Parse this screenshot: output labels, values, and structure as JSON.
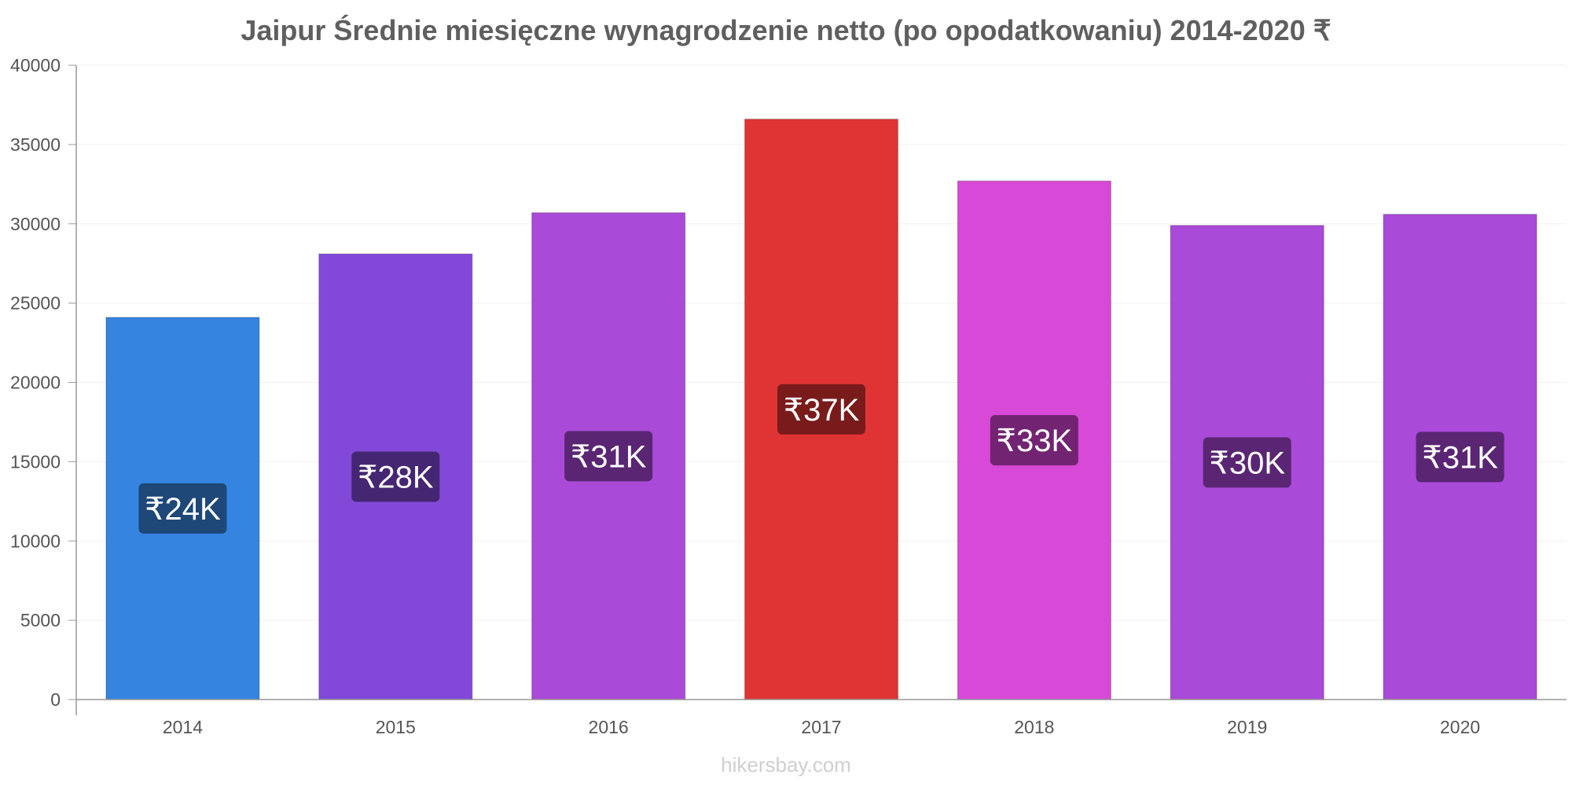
{
  "chart_data": {
    "type": "bar",
    "title": "Jaipur Średnie miesięczne wynagrodzenie netto (po opodatkowaniu) 2014-2020 ₹",
    "categories": [
      "2014",
      "2015",
      "2016",
      "2017",
      "2018",
      "2019",
      "2020"
    ],
    "values": [
      24100,
      28100,
      30700,
      36600,
      32700,
      29900,
      30600
    ],
    "data_labels": [
      "₹24K",
      "₹28K",
      "₹31K",
      "₹37K",
      "₹33K",
      "₹30K",
      "₹31K"
    ],
    "bar_colors": [
      "#3584e0",
      "#8249d8",
      "#a94ad9",
      "#e03434",
      "#d749d6",
      "#a94ad9",
      "#a94ad9"
    ],
    "label_bg_colors": [
      "#1e4878",
      "#452672",
      "#5a2673",
      "#7a1b1b",
      "#722472",
      "#5a2673",
      "#5a2673"
    ],
    "y_ticks": [
      "0",
      "5000",
      "10000",
      "15000",
      "20000",
      "25000",
      "30000",
      "35000",
      "40000"
    ],
    "ylim": [
      0,
      40000
    ],
    "xlabel": "",
    "ylabel": "",
    "grid": true
  },
  "footer": "hikersbay.com"
}
